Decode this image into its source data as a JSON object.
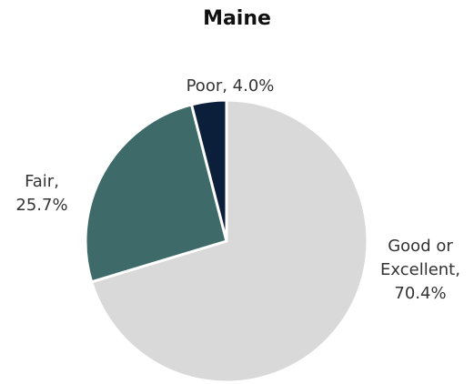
{
  "chart_data": {
    "type": "pie",
    "title": "Maine",
    "slices": [
      {
        "label": "Good or Excellent",
        "value": 70.4,
        "color": "#d9d9d9",
        "label_lines": [
          "Good or",
          "Excellent,",
          "70.4%"
        ]
      },
      {
        "label": "Fair",
        "value": 25.7,
        "color": "#3e6b69",
        "label_lines": [
          "Fair,",
          "25.7%"
        ]
      },
      {
        "label": "Poor",
        "value": 4.0,
        "color": "#0b1f3a",
        "label_lines": [
          "Poor, 4.0%"
        ]
      }
    ],
    "start": "12 o'clock",
    "direction": "clockwise",
    "legend": "none"
  }
}
